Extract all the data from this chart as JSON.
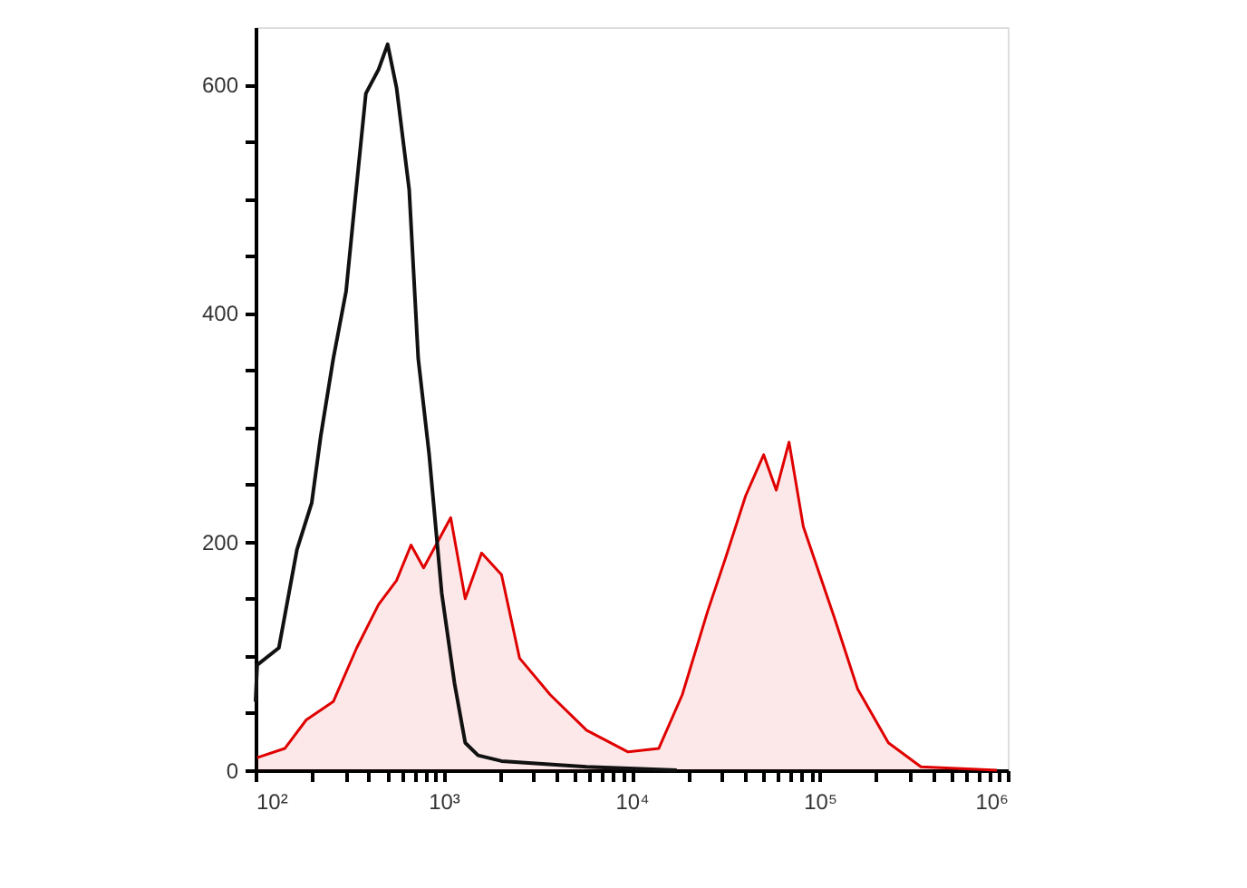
{
  "chart_data": {
    "type": "line",
    "log": "x",
    "grid": false,
    "xlim": [
      100,
      1000000
    ],
    "xticks": [
      {
        "value": 100,
        "label": "10²"
      },
      {
        "value": 200,
        "label": null
      },
      {
        "value": 300,
        "label": null
      },
      {
        "value": 400,
        "label": null
      },
      {
        "value": 500,
        "label": null
      },
      {
        "value": 600,
        "label": null
      },
      {
        "value": 700,
        "label": null
      },
      {
        "value": 800,
        "label": null
      },
      {
        "value": 900,
        "label": null
      },
      {
        "value": 1000,
        "label": "10³"
      },
      {
        "value": 2000,
        "label": null
      },
      {
        "value": 3000,
        "label": null
      },
      {
        "value": 4000,
        "label": null
      },
      {
        "value": 5000,
        "label": null
      },
      {
        "value": 6000,
        "label": null
      },
      {
        "value": 7000,
        "label": null
      },
      {
        "value": 8000,
        "label": null
      },
      {
        "value": 9000,
        "label": null
      },
      {
        "value": 10000,
        "label": "10⁴"
      },
      {
        "value": 20000,
        "label": null
      },
      {
        "value": 30000,
        "label": null
      },
      {
        "value": 40000,
        "label": null
      },
      {
        "value": 50000,
        "label": null
      },
      {
        "value": 60000,
        "label": null
      },
      {
        "value": 70000,
        "label": null
      },
      {
        "value": 80000,
        "label": null
      },
      {
        "value": 90000,
        "label": null
      },
      {
        "value": 100000,
        "label": "10⁵"
      },
      {
        "value": 200000,
        "label": null
      },
      {
        "value": 300000,
        "label": null
      },
      {
        "value": 400000,
        "label": null
      },
      {
        "value": 500000,
        "label": null
      },
      {
        "value": 600000,
        "label": null
      },
      {
        "value": 700000,
        "label": null
      },
      {
        "value": 800000,
        "label": null
      },
      {
        "value": 900000,
        "label": null
      },
      {
        "value": 1000000,
        "label": "10⁶"
      }
    ],
    "ylim": [
      0,
      650
    ],
    "yticks": [
      0,
      {
        "value": 50,
        "label": null
      },
      {
        "value": 100,
        "label": null
      },
      {
        "value": 150,
        "label": null
      },
      200,
      {
        "value": 250,
        "label": null
      },
      {
        "value": 300,
        "label": null
      },
      {
        "value": 350,
        "label": null
      },
      400,
      {
        "value": 450,
        "label": null
      },
      {
        "value": 500,
        "label": null
      },
      {
        "value": 550,
        "label": null
      },
      600
    ],
    "series": [
      {
        "type": "area",
        "color": "#e00000",
        "x": [
          102,
          143,
          186,
          259,
          345,
          451,
          562,
          671,
          783,
          1091,
          1303,
          1592,
          2032,
          2535,
          3690,
          5754,
          9572,
          13930,
          18580,
          25350,
          31620,
          40360,
          50350,
          58750,
          68710,
          81850,
          119400,
          159200,
          231900,
          345300,
          875000
        ],
        "values": [
          11,
          19,
          44,
          60,
          107,
          145,
          166,
          197,
          177,
          221,
          150,
          190,
          171,
          98,
          66,
          35,
          16,
          19,
          66,
          139,
          186,
          240,
          276,
          245,
          287,
          213,
          134,
          71,
          24,
          3,
          0
        ]
      },
      {
        "color": "#111111",
        "x": [
          100,
          102,
          133,
          166,
          199,
          222,
          259,
          303,
          338,
          386,
          451,
          504,
          562,
          656,
          733,
          838,
          977,
          1143,
          1303,
          1525,
          2032,
          5754,
          17380
        ],
        "values": [
          60,
          92,
          107,
          193,
          234,
          292,
          360,
          419,
          498,
          592,
          613,
          635,
          597,
          508,
          360,
          276,
          155,
          76,
          24,
          13,
          8,
          3,
          0
        ]
      }
    ]
  }
}
